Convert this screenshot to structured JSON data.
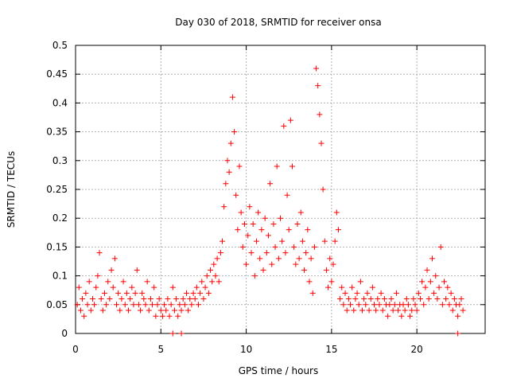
{
  "chart_data": {
    "type": "scatter",
    "title": "Day 030 of 2018, SRMTID for receiver onsa",
    "xlabel": "GPS time / hours",
    "ylabel": "SRMTID / TECUs",
    "xlim": [
      0,
      24
    ],
    "ylim": [
      0,
      0.5
    ],
    "x_ticks": [
      0,
      5,
      10,
      15,
      20
    ],
    "x_tick_labels": [
      "0",
      "5",
      "10",
      "15",
      "20"
    ],
    "y_ticks": [
      0,
      0.05,
      0.1,
      0.15,
      0.2,
      0.25,
      0.3,
      0.35,
      0.4,
      0.45,
      0.5
    ],
    "y_tick_labels": [
      "0",
      "0.05",
      "0.1",
      "0.15",
      "0.2",
      "0.25",
      "0.3",
      "0.35",
      "0.4",
      "0.45",
      "0.5"
    ],
    "grid": true,
    "marker": "+",
    "color": "#ff0000",
    "series": [
      {
        "name": "SRMTID",
        "points": [
          [
            0.1,
            0.05
          ],
          [
            0.2,
            0.08
          ],
          [
            0.3,
            0.04
          ],
          [
            0.4,
            0.06
          ],
          [
            0.5,
            0.03
          ],
          [
            0.6,
            0.07
          ],
          [
            0.7,
            0.05
          ],
          [
            0.8,
            0.09
          ],
          [
            0.9,
            0.04
          ],
          [
            1.0,
            0.06
          ],
          [
            1.1,
            0.05
          ],
          [
            1.2,
            0.08
          ],
          [
            1.3,
            0.1
          ],
          [
            1.4,
            0.14
          ],
          [
            1.5,
            0.06
          ],
          [
            1.6,
            0.04
          ],
          [
            1.7,
            0.07
          ],
          [
            1.8,
            0.05
          ],
          [
            1.9,
            0.09
          ],
          [
            2.0,
            0.06
          ],
          [
            2.1,
            0.11
          ],
          [
            2.2,
            0.08
          ],
          [
            2.3,
            0.13
          ],
          [
            2.4,
            0.05
          ],
          [
            2.5,
            0.07
          ],
          [
            2.6,
            0.04
          ],
          [
            2.7,
            0.06
          ],
          [
            2.8,
            0.09
          ],
          [
            2.9,
            0.05
          ],
          [
            3.0,
            0.07
          ],
          [
            3.1,
            0.04
          ],
          [
            3.2,
            0.06
          ],
          [
            3.3,
            0.08
          ],
          [
            3.4,
            0.05
          ],
          [
            3.5,
            0.07
          ],
          [
            3.6,
            0.11
          ],
          [
            3.7,
            0.05
          ],
          [
            3.8,
            0.04
          ],
          [
            3.9,
            0.07
          ],
          [
            4.0,
            0.06
          ],
          [
            4.1,
            0.05
          ],
          [
            4.2,
            0.09
          ],
          [
            4.3,
            0.04
          ],
          [
            4.4,
            0.06
          ],
          [
            4.5,
            0.05
          ],
          [
            4.6,
            0.08
          ],
          [
            4.7,
            0.03
          ],
          [
            4.8,
            0.05
          ],
          [
            4.9,
            0.06
          ],
          [
            5.0,
            0.04
          ],
          [
            5.1,
            0.03
          ],
          [
            5.2,
            0.05
          ],
          [
            5.3,
            0.04
          ],
          [
            5.4,
            0.06
          ],
          [
            5.5,
            0.03
          ],
          [
            5.6,
            0.05
          ],
          [
            5.7,
            0.08
          ],
          [
            5.8,
            0.04
          ],
          [
            5.9,
            0.06
          ],
          [
            6.0,
            0.03
          ],
          [
            6.1,
            0.05
          ],
          [
            6.2,
            0.04
          ],
          [
            6.3,
            0.06
          ],
          [
            6.4,
            0.05
          ],
          [
            6.5,
            0.07
          ],
          [
            6.6,
            0.04
          ],
          [
            6.7,
            0.06
          ],
          [
            6.8,
            0.05
          ],
          [
            6.9,
            0.07
          ],
          [
            7.0,
            0.06
          ],
          [
            7.1,
            0.08
          ],
          [
            7.2,
            0.05
          ],
          [
            7.3,
            0.07
          ],
          [
            7.4,
            0.09
          ],
          [
            7.5,
            0.06
          ],
          [
            7.6,
            0.08
          ],
          [
            7.7,
            0.1
          ],
          [
            7.8,
            0.07
          ],
          [
            7.9,
            0.11
          ],
          [
            8.0,
            0.09
          ],
          [
            8.1,
            0.12
          ],
          [
            8.2,
            0.1
          ],
          [
            8.3,
            0.13
          ],
          [
            8.4,
            0.09
          ],
          [
            8.5,
            0.14
          ],
          [
            8.6,
            0.16
          ],
          [
            8.7,
            0.22
          ],
          [
            8.8,
            0.26
          ],
          [
            8.9,
            0.3
          ],
          [
            9.0,
            0.28
          ],
          [
            9.1,
            0.33
          ],
          [
            9.2,
            0.41
          ],
          [
            9.3,
            0.35
          ],
          [
            9.4,
            0.24
          ],
          [
            9.5,
            0.18
          ],
          [
            9.6,
            0.29
          ],
          [
            9.7,
            0.21
          ],
          [
            9.8,
            0.15
          ],
          [
            9.9,
            0.19
          ],
          [
            10.0,
            0.12
          ],
          [
            10.1,
            0.17
          ],
          [
            10.2,
            0.22
          ],
          [
            10.3,
            0.14
          ],
          [
            10.4,
            0.19
          ],
          [
            10.5,
            0.1
          ],
          [
            10.6,
            0.16
          ],
          [
            10.7,
            0.21
          ],
          [
            10.8,
            0.13
          ],
          [
            10.9,
            0.18
          ],
          [
            11.0,
            0.11
          ],
          [
            11.1,
            0.2
          ],
          [
            11.2,
            0.14
          ],
          [
            11.3,
            0.17
          ],
          [
            11.4,
            0.26
          ],
          [
            11.5,
            0.12
          ],
          [
            11.6,
            0.19
          ],
          [
            11.7,
            0.15
          ],
          [
            11.8,
            0.29
          ],
          [
            11.9,
            0.13
          ],
          [
            12.0,
            0.2
          ],
          [
            12.1,
            0.16
          ],
          [
            12.2,
            0.36
          ],
          [
            12.3,
            0.14
          ],
          [
            12.4,
            0.24
          ],
          [
            12.5,
            0.18
          ],
          [
            12.6,
            0.37
          ],
          [
            12.7,
            0.29
          ],
          [
            12.8,
            0.15
          ],
          [
            12.9,
            0.12
          ],
          [
            13.0,
            0.19
          ],
          [
            13.1,
            0.13
          ],
          [
            13.2,
            0.21
          ],
          [
            13.3,
            0.16
          ],
          [
            13.4,
            0.11
          ],
          [
            13.5,
            0.14
          ],
          [
            13.6,
            0.18
          ],
          [
            13.7,
            0.09
          ],
          [
            13.8,
            0.13
          ],
          [
            13.9,
            0.07
          ],
          [
            14.0,
            0.15
          ],
          [
            14.1,
            0.46
          ],
          [
            14.2,
            0.43
          ],
          [
            14.3,
            0.38
          ],
          [
            14.4,
            0.33
          ],
          [
            14.5,
            0.25
          ],
          [
            14.6,
            0.16
          ],
          [
            14.7,
            0.11
          ],
          [
            14.8,
            0.08
          ],
          [
            14.9,
            0.13
          ],
          [
            15.0,
            0.09
          ],
          [
            15.1,
            0.12
          ],
          [
            15.2,
            0.16
          ],
          [
            15.3,
            0.21
          ],
          [
            15.4,
            0.18
          ],
          [
            15.5,
            0.06
          ],
          [
            15.6,
            0.08
          ],
          [
            15.7,
            0.05
          ],
          [
            15.8,
            0.07
          ],
          [
            15.9,
            0.04
          ],
          [
            16.0,
            0.06
          ],
          [
            16.1,
            0.05
          ],
          [
            16.2,
            0.08
          ],
          [
            16.3,
            0.04
          ],
          [
            16.4,
            0.06
          ],
          [
            16.5,
            0.07
          ],
          [
            16.6,
            0.05
          ],
          [
            16.7,
            0.09
          ],
          [
            16.8,
            0.04
          ],
          [
            16.9,
            0.06
          ],
          [
            17.0,
            0.05
          ],
          [
            17.1,
            0.07
          ],
          [
            17.2,
            0.04
          ],
          [
            17.3,
            0.06
          ],
          [
            17.4,
            0.08
          ],
          [
            17.5,
            0.05
          ],
          [
            17.6,
            0.04
          ],
          [
            17.7,
            0.06
          ],
          [
            17.8,
            0.05
          ],
          [
            17.9,
            0.07
          ],
          [
            18.0,
            0.04
          ],
          [
            18.1,
            0.06
          ],
          [
            18.2,
            0.05
          ],
          [
            18.3,
            0.03
          ],
          [
            18.4,
            0.05
          ],
          [
            18.5,
            0.06
          ],
          [
            18.6,
            0.04
          ],
          [
            18.7,
            0.05
          ],
          [
            18.8,
            0.07
          ],
          [
            18.9,
            0.04
          ],
          [
            19.0,
            0.05
          ],
          [
            19.1,
            0.03
          ],
          [
            19.2,
            0.05
          ],
          [
            19.3,
            0.04
          ],
          [
            19.4,
            0.06
          ],
          [
            19.5,
            0.05
          ],
          [
            19.6,
            0.03
          ],
          [
            19.7,
            0.04
          ],
          [
            19.8,
            0.06
          ],
          [
            19.9,
            0.05
          ],
          [
            20.0,
            0.04
          ],
          [
            20.1,
            0.07
          ],
          [
            20.2,
            0.06
          ],
          [
            20.3,
            0.09
          ],
          [
            20.4,
            0.05
          ],
          [
            20.5,
            0.08
          ],
          [
            20.6,
            0.11
          ],
          [
            20.7,
            0.06
          ],
          [
            20.8,
            0.09
          ],
          [
            20.9,
            0.13
          ],
          [
            21.0,
            0.07
          ],
          [
            21.1,
            0.1
          ],
          [
            21.2,
            0.06
          ],
          [
            21.3,
            0.08
          ],
          [
            21.4,
            0.15
          ],
          [
            21.5,
            0.05
          ],
          [
            21.6,
            0.09
          ],
          [
            21.7,
            0.06
          ],
          [
            21.8,
            0.08
          ],
          [
            21.9,
            0.05
          ],
          [
            22.0,
            0.07
          ],
          [
            22.1,
            0.04
          ],
          [
            22.2,
            0.06
          ],
          [
            22.3,
            0.05
          ],
          [
            22.4,
            0.03
          ],
          [
            22.5,
            0.05
          ],
          [
            22.6,
            0.06
          ],
          [
            22.7,
            0.04
          ],
          [
            5.7,
            0.0
          ],
          [
            6.2,
            0.0
          ],
          [
            22.4,
            0.0
          ]
        ]
      }
    ]
  }
}
